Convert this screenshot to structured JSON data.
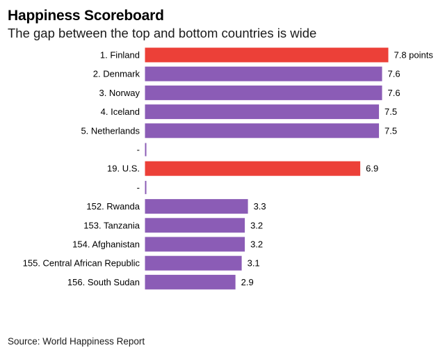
{
  "chart_data": {
    "type": "bar",
    "orientation": "horizontal",
    "title": "Happiness Scoreboard",
    "subtitle": "The gap between the top and bottom countries is wide",
    "source": "Source: World Happiness Report",
    "unit_suffix": " points",
    "categories": [
      "1. Finland",
      "2. Denmark",
      "3. Norway",
      "4. Iceland",
      "5. Netherlands",
      "-",
      "19. U.S.",
      "-",
      "152. Rwanda",
      "153. Tanzania",
      "154. Afghanistan",
      "155. Central African Republic",
      "156. South Sudan"
    ],
    "values": [
      7.8,
      7.6,
      7.6,
      7.5,
      7.5,
      null,
      6.9,
      null,
      3.3,
      3.2,
      3.2,
      3.1,
      2.9
    ],
    "value_labels": [
      "7.8 points",
      "7.6",
      "7.6",
      "7.5",
      "7.5",
      "",
      "6.9",
      "",
      "3.3",
      "3.2",
      "3.2",
      "3.1",
      "2.9"
    ],
    "highlighted": [
      "1. Finland",
      "19. U.S."
    ],
    "colors": {
      "default": "#8b5cb6",
      "highlight": "#ec4038",
      "separator": "#8b5cb6"
    },
    "xlim": [
      0,
      7.8
    ],
    "grid": false,
    "legend": "none"
  }
}
